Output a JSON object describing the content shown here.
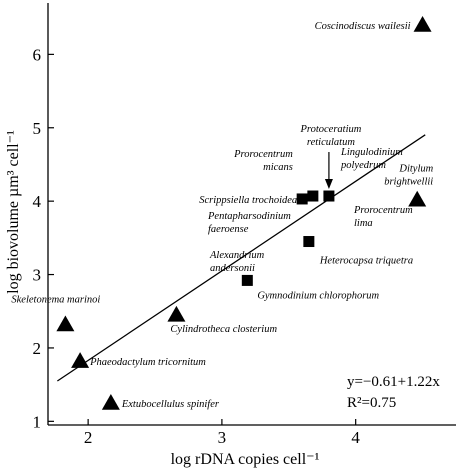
{
  "chart_data": {
    "type": "scatter",
    "title": "",
    "xlabel": "log rDNA copies cell⁻¹",
    "ylabel": "log biovolume µm³ cell⁻¹",
    "xlim": [
      1.7,
      4.75
    ],
    "ylim": [
      0.95,
      6.7
    ],
    "xticks": [
      2,
      3,
      4
    ],
    "yticks": [
      1,
      2,
      3,
      4,
      5,
      6
    ],
    "grid": false,
    "legend": "none",
    "regression": {
      "slope": 1.22,
      "intercept": -0.61,
      "x_range": [
        1.77,
        4.52
      ],
      "equation_label": "y=−0.61+1.22x",
      "r2_label": "R²=0.75"
    },
    "points": [
      {
        "label": "Coscinodiscus wailesii",
        "x": 4.5,
        "y": 6.4,
        "marker": "triangle"
      },
      {
        "label": "Ditylum brightwellii",
        "x": 4.46,
        "y": 4.02,
        "marker": "triangle"
      },
      {
        "label": "Skeletonema marinoi",
        "x": 1.83,
        "y": 2.32,
        "marker": "triangle"
      },
      {
        "label": "Cylindrotheca closterium",
        "x": 2.66,
        "y": 2.45,
        "marker": "triangle"
      },
      {
        "label": "Phaeodactylum tricornitum",
        "x": 1.94,
        "y": 1.82,
        "marker": "triangle"
      },
      {
        "label": "Extubocellulus spinifer",
        "x": 2.17,
        "y": 1.25,
        "marker": "triangle"
      },
      {
        "label": "Scrippsiella trochoidea",
        "x": 3.6,
        "y": 4.03,
        "marker": "square"
      },
      {
        "label": "Prorocentrum micans",
        "x": 3.68,
        "y": 4.07,
        "marker": "square"
      },
      {
        "label": "Protoceratium reticulatum",
        "x": 3.8,
        "y": 4.07,
        "marker": "square"
      },
      {
        "label": "Heterocapsa triquetra",
        "x": 3.65,
        "y": 3.45,
        "marker": "square"
      },
      {
        "label": "Gymnodinium chlorophorum",
        "x": 3.19,
        "y": 2.92,
        "marker": "square"
      }
    ],
    "annotations": [
      {
        "name": "lingulodinium",
        "lines": [
          "Lingulodinium",
          "polyedrum"
        ]
      },
      {
        "name": "prorocentrum-lima",
        "lines": [
          "Prorocentrum",
          "lima"
        ]
      },
      {
        "name": "pentapharsodinium",
        "lines": [
          "Pentapharsodinium",
          "faeroense"
        ]
      },
      {
        "name": "alexandrium",
        "lines": [
          "Alexandrium",
          "andersonii"
        ]
      }
    ],
    "colors": {
      "marker": "#000000",
      "line": "#000000",
      "axis": "#000000"
    }
  }
}
